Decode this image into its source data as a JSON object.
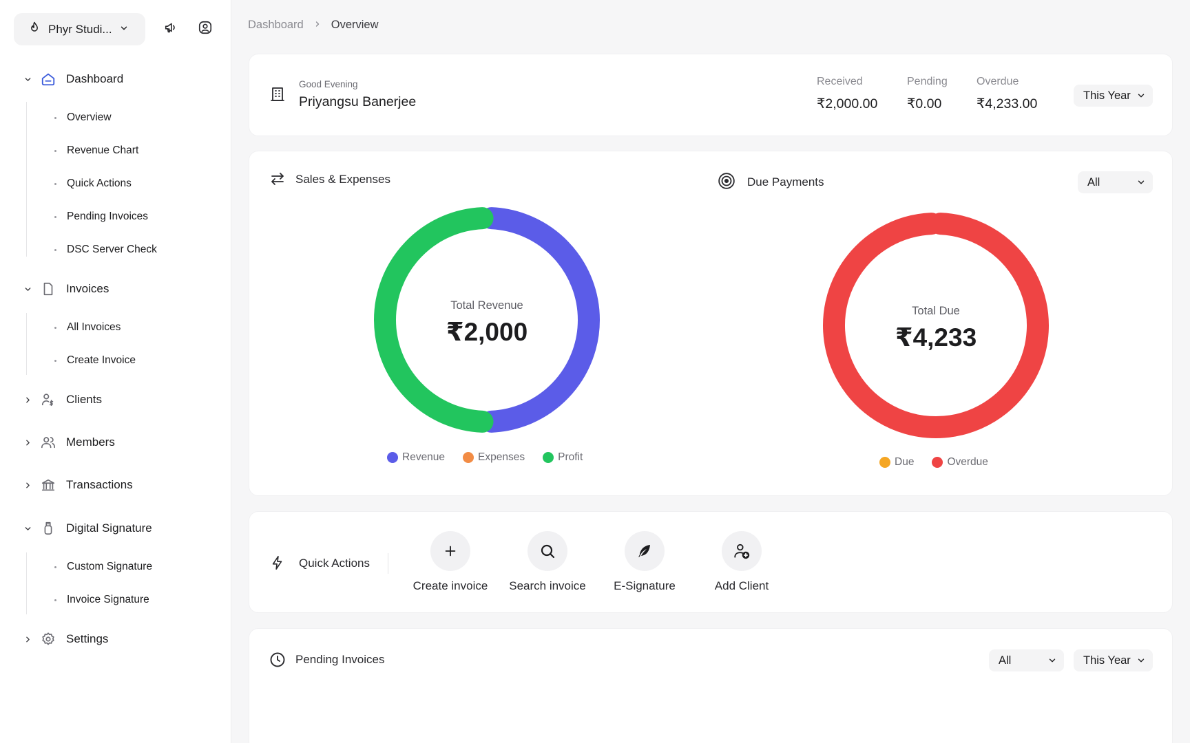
{
  "workspace": {
    "name": "Phyr Studi..."
  },
  "icons": {
    "workspace": "flame-icon",
    "announcements": "megaphone-icon",
    "profile": "user-circle-icon"
  },
  "sidebar": {
    "groups": [
      {
        "label": "Dashboard",
        "icon": "home-icon",
        "expanded": true,
        "items": [
          "Overview",
          "Revenue Chart",
          "Quick Actions",
          "Pending Invoices",
          "DSC Server Check"
        ]
      },
      {
        "label": "Invoices",
        "icon": "file-icon",
        "expanded": true,
        "items": [
          "All Invoices",
          "Create Invoice"
        ]
      },
      {
        "label": "Clients",
        "icon": "user-dollar-icon",
        "expanded": false,
        "items": []
      },
      {
        "label": "Members",
        "icon": "users-icon",
        "expanded": false,
        "items": []
      },
      {
        "label": "Transactions",
        "icon": "bank-icon",
        "expanded": false,
        "items": []
      },
      {
        "label": "Digital Signature",
        "icon": "usb-key-icon",
        "expanded": true,
        "items": [
          "Custom Signature",
          "Invoice Signature"
        ]
      },
      {
        "label": "Settings",
        "icon": "gear-icon",
        "expanded": false,
        "items": []
      }
    ],
    "active_color": "#3b5bdb"
  },
  "breadcrumb": {
    "parent": "Dashboard",
    "current": "Overview"
  },
  "summary": {
    "greeting": "Good Evening",
    "user_name": "Priyangsu Banerjee",
    "stats": [
      {
        "label": "Received",
        "value": "₹2,000.00"
      },
      {
        "label": "Pending",
        "value": "₹0.00"
      },
      {
        "label": "Overdue",
        "value": "₹4,233.00"
      }
    ],
    "period": "This Year"
  },
  "sales": {
    "title": "Sales & Expenses",
    "center_label": "Total Revenue",
    "center_value": "₹2,000",
    "legend": [
      {
        "name": "Revenue",
        "color": "#5b5ce8"
      },
      {
        "name": "Expenses",
        "color": "#f28c45"
      },
      {
        "name": "Profit",
        "color": "#22c55e"
      }
    ]
  },
  "due": {
    "title": "Due Payments",
    "filter": "All",
    "center_label": "Total Due",
    "center_value": "₹4,233",
    "legend": [
      {
        "name": "Due",
        "color": "#f5a623"
      },
      {
        "name": "Overdue",
        "color": "#ef4444"
      }
    ]
  },
  "quick_actions": {
    "title": "Quick Actions",
    "actions": [
      {
        "label": "Create invoice",
        "icon": "plus-icon"
      },
      {
        "label": "Search invoice",
        "icon": "search-icon"
      },
      {
        "label": "E-Signature",
        "icon": "feather-icon"
      },
      {
        "label": "Add Client",
        "icon": "user-plus-icon"
      }
    ]
  },
  "pending": {
    "title": "Pending Invoices",
    "filter": "All",
    "period": "This Year"
  },
  "chart_data": [
    {
      "type": "pie",
      "title": "Sales & Expenses",
      "categories": [
        "Revenue",
        "Expenses",
        "Profit"
      ],
      "values": [
        2000,
        0,
        2000
      ],
      "colors": [
        "#5b5ce8",
        "#f28c45",
        "#22c55e"
      ]
    },
    {
      "type": "pie",
      "title": "Due Payments",
      "categories": [
        "Due",
        "Overdue"
      ],
      "values": [
        0,
        4233
      ],
      "colors": [
        "#f5a623",
        "#ef4444"
      ]
    }
  ]
}
